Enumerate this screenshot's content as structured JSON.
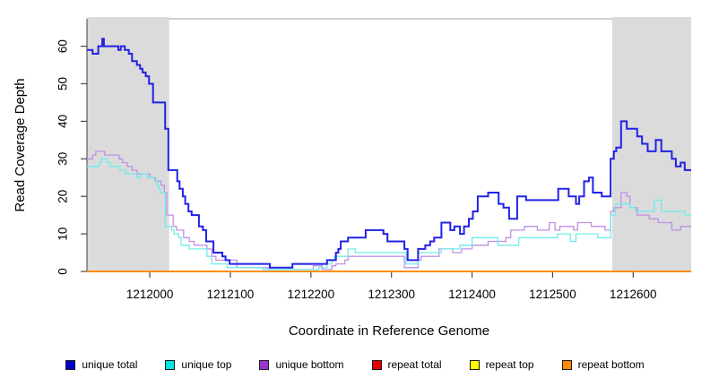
{
  "chart_data": {
    "type": "line",
    "subtype": "step-coverage",
    "xlabel": "Coordinate in Reference Genome",
    "ylabel": "Read Coverage Depth",
    "xlim": [
      1211922,
      1212672
    ],
    "ylim": [
      0,
      67.3
    ],
    "x_ticks": [
      1212000,
      1212100,
      1212200,
      1212300,
      1212400,
      1212500,
      1212600
    ],
    "y_ticks": [
      0,
      10,
      20,
      30,
      40,
      50,
      60
    ],
    "grid": false,
    "legend_position": "bottom",
    "shade_color": "#DBDBDB",
    "shaded_regions": [
      {
        "from": 1211922,
        "to": 1212024
      },
      {
        "from": 1212574,
        "to": 1212672
      }
    ],
    "series": [
      {
        "name": "unique total",
        "color": "#2222E6",
        "legend_color": "#0000CD",
        "width": 2,
        "points": [
          [
            1211922,
            59
          ],
          [
            1211929,
            58
          ],
          [
            1211936,
            60
          ],
          [
            1211941,
            62
          ],
          [
            1211943,
            60
          ],
          [
            1211961,
            59
          ],
          [
            1211964,
            60
          ],
          [
            1211969,
            59
          ],
          [
            1211974,
            58
          ],
          [
            1211978,
            56
          ],
          [
            1211984,
            55
          ],
          [
            1211988,
            54
          ],
          [
            1211991,
            53
          ],
          [
            1211995,
            52
          ],
          [
            1211999,
            50
          ],
          [
            1212004,
            45
          ],
          [
            1212019,
            38
          ],
          [
            1212023,
            27
          ],
          [
            1212034,
            24
          ],
          [
            1212037,
            22
          ],
          [
            1212041,
            20
          ],
          [
            1212044,
            18
          ],
          [
            1212048,
            16
          ],
          [
            1212052,
            15
          ],
          [
            1212061,
            12
          ],
          [
            1212066,
            11
          ],
          [
            1212070,
            8
          ],
          [
            1212079,
            5
          ],
          [
            1212090,
            4
          ],
          [
            1212094,
            3
          ],
          [
            1212099,
            2
          ],
          [
            1212149,
            1
          ],
          [
            1212177,
            2
          ],
          [
            1212220,
            3
          ],
          [
            1212231,
            5
          ],
          [
            1212234,
            6
          ],
          [
            1212237,
            8
          ],
          [
            1212246,
            9
          ],
          [
            1212268,
            11
          ],
          [
            1212290,
            10
          ],
          [
            1212295,
            8
          ],
          [
            1212316,
            6
          ],
          [
            1212320,
            3
          ],
          [
            1212333,
            6
          ],
          [
            1212342,
            7
          ],
          [
            1212348,
            8
          ],
          [
            1212353,
            9
          ],
          [
            1212362,
            13
          ],
          [
            1212373,
            11
          ],
          [
            1212378,
            12
          ],
          [
            1212385,
            10
          ],
          [
            1212390,
            12
          ],
          [
            1212396,
            14
          ],
          [
            1212401,
            16
          ],
          [
            1212407,
            20
          ],
          [
            1212420,
            21
          ],
          [
            1212433,
            18
          ],
          [
            1212439,
            17
          ],
          [
            1212446,
            14
          ],
          [
            1212456,
            20
          ],
          [
            1212467,
            19
          ],
          [
            1212507,
            22
          ],
          [
            1212520,
            20
          ],
          [
            1212529,
            18
          ],
          [
            1212533,
            20
          ],
          [
            1212539,
            24
          ],
          [
            1212545,
            25
          ],
          [
            1212550,
            21
          ],
          [
            1212561,
            20
          ],
          [
            1212572,
            30
          ],
          [
            1212576,
            32
          ],
          [
            1212579,
            33
          ],
          [
            1212585,
            40
          ],
          [
            1212592,
            38
          ],
          [
            1212605,
            36
          ],
          [
            1212611,
            34
          ],
          [
            1212618,
            32
          ],
          [
            1212628,
            35
          ],
          [
            1212635,
            32
          ],
          [
            1212648,
            30
          ],
          [
            1212653,
            28
          ],
          [
            1212659,
            29
          ],
          [
            1212664,
            27
          ]
        ]
      },
      {
        "name": "unique top",
        "color": "#6FEDE8",
        "legend_color": "#00E5E5",
        "width": 1.3,
        "points": [
          [
            1211922,
            28
          ],
          [
            1211937,
            29
          ],
          [
            1211940,
            30
          ],
          [
            1211947,
            29
          ],
          [
            1211951,
            28
          ],
          [
            1211963,
            27
          ],
          [
            1211970,
            26
          ],
          [
            1211984,
            25
          ],
          [
            1211989,
            26
          ],
          [
            1211997,
            25
          ],
          [
            1212006,
            24
          ],
          [
            1212009,
            23
          ],
          [
            1212011,
            22
          ],
          [
            1212013,
            21
          ],
          [
            1212019,
            12
          ],
          [
            1212027,
            11
          ],
          [
            1212030,
            10
          ],
          [
            1212036,
            9
          ],
          [
            1212039,
            7
          ],
          [
            1212049,
            6
          ],
          [
            1212071,
            4
          ],
          [
            1212077,
            2
          ],
          [
            1212096,
            1
          ],
          [
            1212140,
            0.5
          ],
          [
            1212210,
            1
          ],
          [
            1212220,
            2
          ],
          [
            1212226,
            3
          ],
          [
            1212229,
            4
          ],
          [
            1212246,
            6
          ],
          [
            1212255,
            5
          ],
          [
            1212318,
            2
          ],
          [
            1212333,
            5
          ],
          [
            1212362,
            6
          ],
          [
            1212385,
            7
          ],
          [
            1212400,
            9
          ],
          [
            1212432,
            7
          ],
          [
            1212458,
            9
          ],
          [
            1212506,
            10
          ],
          [
            1212522,
            8
          ],
          [
            1212529,
            10
          ],
          [
            1212556,
            9
          ],
          [
            1212572,
            15
          ],
          [
            1212578,
            18
          ],
          [
            1212596,
            17
          ],
          [
            1212603,
            16
          ],
          [
            1212626,
            19
          ],
          [
            1212635,
            16
          ],
          [
            1212664,
            15
          ]
        ]
      },
      {
        "name": "unique bottom",
        "color": "#C28FE6",
        "legend_color": "#9933CC",
        "width": 1.3,
        "points": [
          [
            1211922,
            30
          ],
          [
            1211929,
            31
          ],
          [
            1211933,
            32
          ],
          [
            1211944,
            31
          ],
          [
            1211962,
            30
          ],
          [
            1211966,
            29
          ],
          [
            1211972,
            28
          ],
          [
            1211978,
            27
          ],
          [
            1211984,
            26
          ],
          [
            1212000,
            25
          ],
          [
            1212007,
            24
          ],
          [
            1212014,
            23
          ],
          [
            1212018,
            21
          ],
          [
            1212021,
            15
          ],
          [
            1212029,
            12
          ],
          [
            1212033,
            11
          ],
          [
            1212042,
            9
          ],
          [
            1212049,
            8
          ],
          [
            1212055,
            7
          ],
          [
            1212071,
            6
          ],
          [
            1212077,
            4
          ],
          [
            1212082,
            3
          ],
          [
            1212108,
            1
          ],
          [
            1212147,
            0.5
          ],
          [
            1212203,
            1.5
          ],
          [
            1212214,
            0.5
          ],
          [
            1212226,
            1.5
          ],
          [
            1212231,
            2
          ],
          [
            1212242,
            3
          ],
          [
            1212246,
            4
          ],
          [
            1212316,
            1
          ],
          [
            1212333,
            3
          ],
          [
            1212337,
            4
          ],
          [
            1212359,
            6
          ],
          [
            1212376,
            5
          ],
          [
            1212387,
            6
          ],
          [
            1212400,
            7
          ],
          [
            1212420,
            8
          ],
          [
            1212442,
            9
          ],
          [
            1212448,
            11
          ],
          [
            1212465,
            12
          ],
          [
            1212481,
            11
          ],
          [
            1212496,
            13
          ],
          [
            1212503,
            11
          ],
          [
            1212509,
            12
          ],
          [
            1212526,
            11
          ],
          [
            1212531,
            13
          ],
          [
            1212548,
            12
          ],
          [
            1212565,
            11
          ],
          [
            1212572,
            16
          ],
          [
            1212576,
            17
          ],
          [
            1212585,
            21
          ],
          [
            1212592,
            20
          ],
          [
            1212596,
            17
          ],
          [
            1212605,
            15
          ],
          [
            1212620,
            14
          ],
          [
            1212631,
            13
          ],
          [
            1212648,
            11
          ],
          [
            1212659,
            12
          ]
        ]
      },
      {
        "name": "repeat total",
        "color": "#DD0000",
        "legend_color": "#E60000",
        "width": 1.3,
        "points": [
          [
            1211922,
            0
          ]
        ]
      },
      {
        "name": "repeat top",
        "color": "#FFFF00",
        "legend_color": "#FFFF00",
        "width": 1.3,
        "points": [
          [
            1211922,
            0
          ]
        ]
      },
      {
        "name": "repeat bottom",
        "color": "#FF8C00",
        "legend_color": "#FF8C00",
        "width": 2,
        "points": [
          [
            1211922,
            0
          ]
        ]
      }
    ],
    "colors": {
      "axis_line": "#3F3F3F",
      "tick": "#4A4A4A",
      "top_border": "#A3A3A3",
      "text": "#000000"
    }
  }
}
